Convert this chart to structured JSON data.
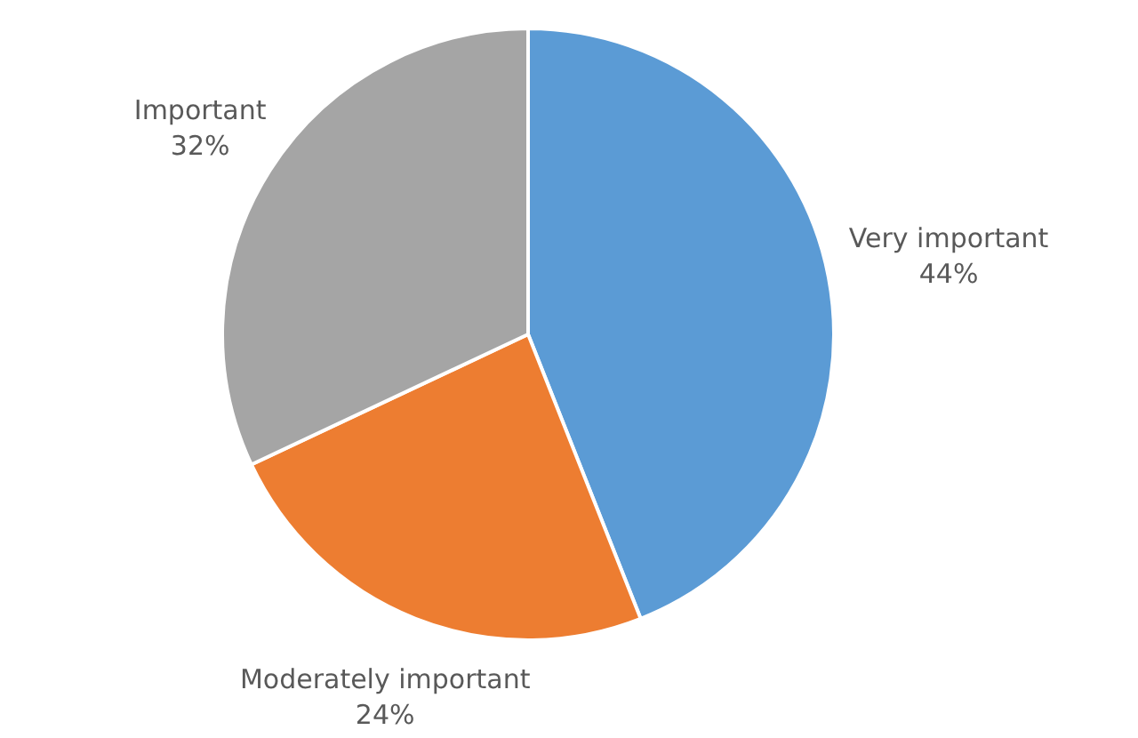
{
  "chart_data": {
    "type": "pie",
    "categories": [
      "Very important",
      "Moderately important",
      "Important"
    ],
    "values": [
      44,
      24,
      32
    ],
    "colors": [
      "#5b9bd5",
      "#ed7d31",
      "#a5a5a5"
    ],
    "value_labels": [
      "44%",
      "24%",
      "32%"
    ]
  }
}
